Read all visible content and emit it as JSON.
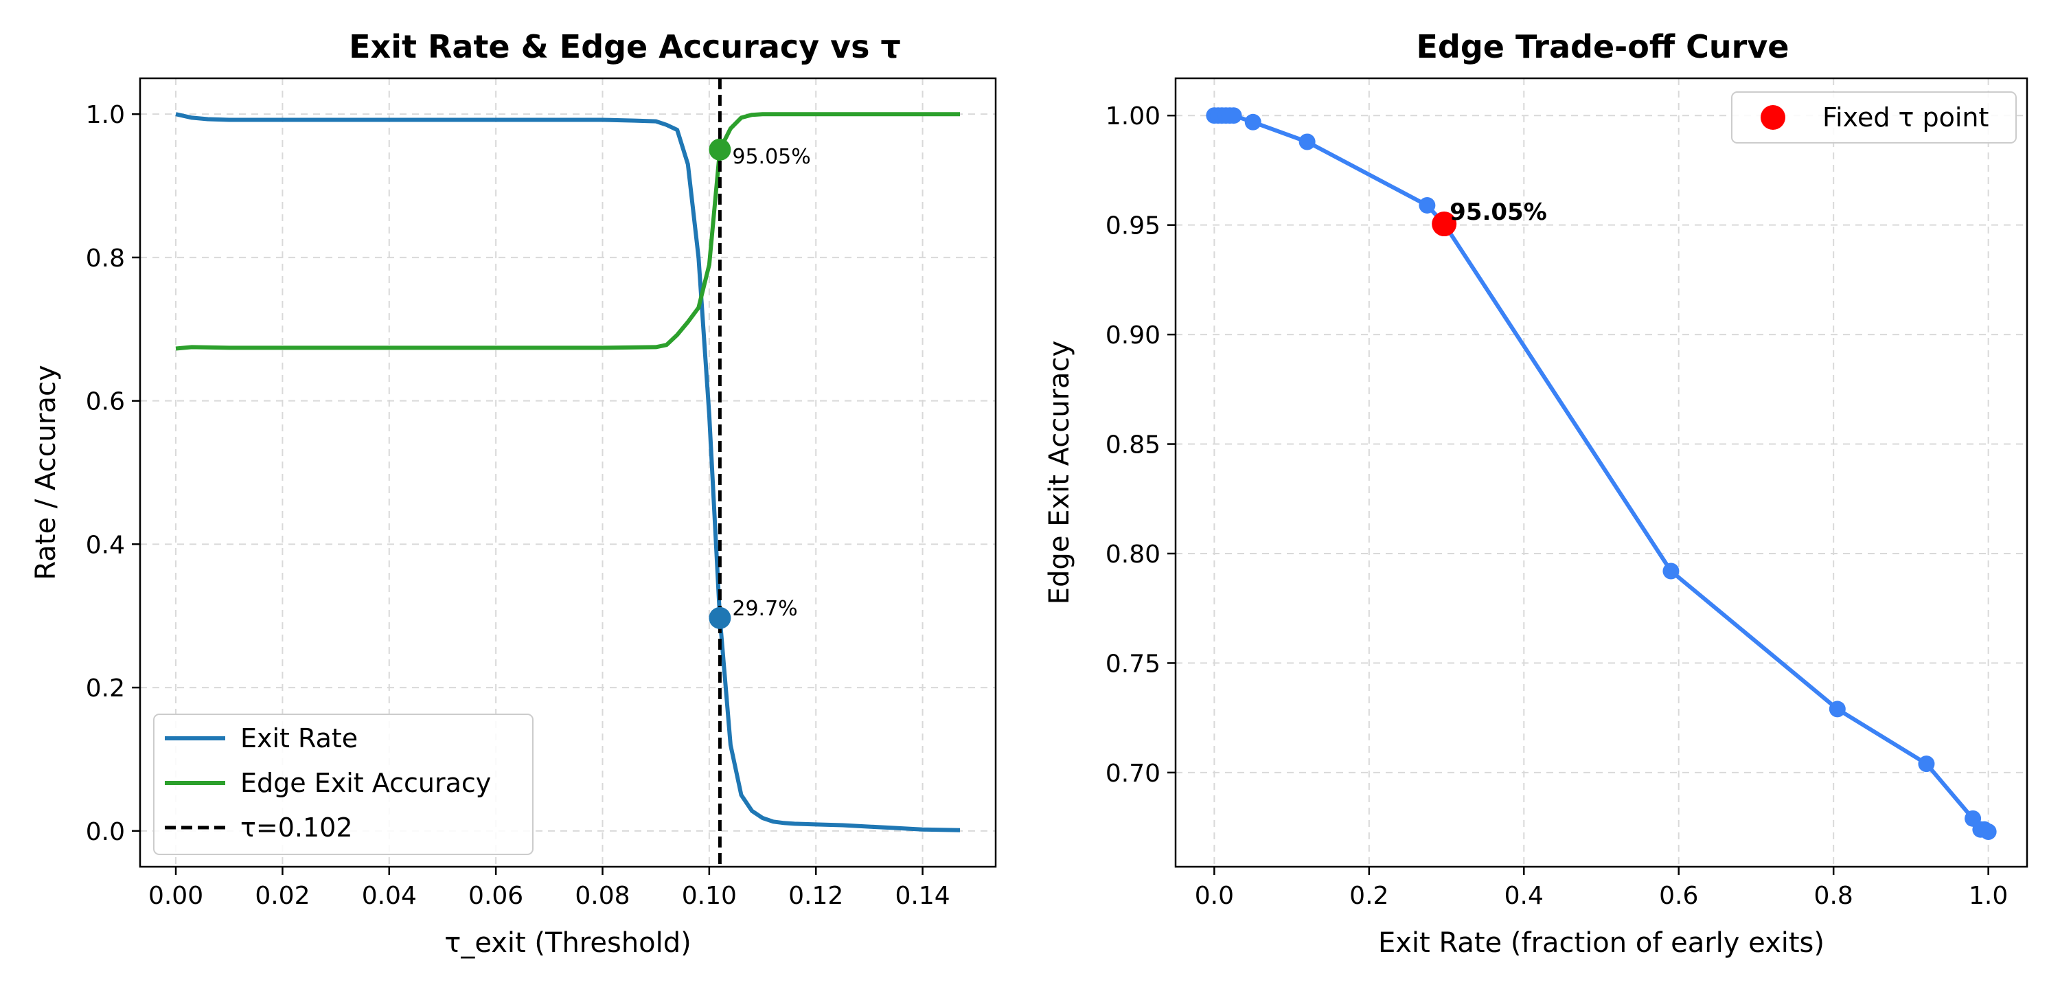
{
  "colors": {
    "exit_rate": "#1f77b4",
    "edge_acc": "#2ca02c",
    "tau_line": "#000000",
    "tradeoff": "#3b82f6",
    "fixed_point": "#ff0000"
  },
  "chart_data": [
    {
      "type": "line",
      "title": "Exit Rate & Edge Accuracy vs τ",
      "xlabel": "τ_exit (Threshold)",
      "ylabel": "Rate / Accuracy",
      "xlim": [
        -0.0067,
        0.1537
      ],
      "ylim": [
        -0.05,
        1.05
      ],
      "xticks": [
        0.0,
        0.02,
        0.04,
        0.06,
        0.08,
        0.1,
        0.12,
        0.14
      ],
      "xtick_labels": [
        "0.00",
        "0.02",
        "0.04",
        "0.06",
        "0.08",
        "0.10",
        "0.12",
        "0.14"
      ],
      "yticks": [
        0.0,
        0.2,
        0.4,
        0.6,
        0.8,
        1.0
      ],
      "ytick_labels": [
        "0.0",
        "0.2",
        "0.4",
        "0.6",
        "0.8",
        "1.0"
      ],
      "grid": true,
      "legend_position": "lower-left",
      "series": [
        {
          "name": "Exit Rate",
          "x": [
            0.0,
            0.003,
            0.006,
            0.01,
            0.02,
            0.04,
            0.06,
            0.08,
            0.086,
            0.09,
            0.092,
            0.094,
            0.096,
            0.098,
            0.1,
            0.102,
            0.104,
            0.106,
            0.108,
            0.11,
            0.112,
            0.114,
            0.116,
            0.12,
            0.125,
            0.13,
            0.135,
            0.14,
            0.147
          ],
          "values": [
            1.0,
            0.995,
            0.993,
            0.992,
            0.992,
            0.992,
            0.992,
            0.992,
            0.991,
            0.99,
            0.985,
            0.978,
            0.93,
            0.8,
            0.58,
            0.297,
            0.12,
            0.05,
            0.028,
            0.018,
            0.013,
            0.011,
            0.01,
            0.009,
            0.008,
            0.006,
            0.004,
            0.002,
            0.001
          ]
        },
        {
          "name": "Edge Exit Accuracy",
          "x": [
            0.0,
            0.003,
            0.01,
            0.02,
            0.04,
            0.06,
            0.08,
            0.09,
            0.092,
            0.094,
            0.096,
            0.098,
            0.1,
            0.102,
            0.104,
            0.106,
            0.108,
            0.11,
            0.12,
            0.13,
            0.14,
            0.147
          ],
          "values": [
            0.673,
            0.675,
            0.674,
            0.674,
            0.674,
            0.674,
            0.674,
            0.675,
            0.678,
            0.692,
            0.71,
            0.73,
            0.79,
            0.9505,
            0.98,
            0.995,
            0.999,
            1.0,
            1.0,
            1.0,
            1.0,
            1.0
          ]
        },
        {
          "name": "τ=0.102",
          "vline": 0.102
        }
      ],
      "markers": [
        {
          "x": 0.102,
          "y": 0.9505,
          "label": "95.05%",
          "series": "Edge Exit Accuracy"
        },
        {
          "x": 0.102,
          "y": 0.297,
          "label": "29.7%",
          "series": "Exit Rate"
        }
      ]
    },
    {
      "type": "line",
      "title": "Edge Trade-off Curve",
      "xlabel": "Exit Rate (fraction of early exits)",
      "ylabel": "Edge Exit Accuracy",
      "xlim": [
        -0.05,
        1.05
      ],
      "ylim": [
        0.657,
        1.017
      ],
      "xticks": [
        0.0,
        0.2,
        0.4,
        0.6,
        0.8,
        1.0
      ],
      "xtick_labels": [
        "0.0",
        "0.2",
        "0.4",
        "0.6",
        "0.8",
        "1.0"
      ],
      "yticks": [
        0.7,
        0.75,
        0.8,
        0.85,
        0.9,
        0.95,
        1.0
      ],
      "ytick_labels": [
        "0.70",
        "0.75",
        "0.80",
        "0.85",
        "0.90",
        "0.95",
        "1.00"
      ],
      "grid": true,
      "legend_position": "upper-right",
      "series": [
        {
          "x": [
            0.0,
            0.005,
            0.01,
            0.015,
            0.02,
            0.025,
            0.05,
            0.12,
            0.275,
            0.297,
            0.59,
            0.805,
            0.92,
            0.98,
            0.99,
            0.995,
            1.0
          ],
          "values": [
            1.0,
            1.0,
            1.0,
            1.0,
            1.0,
            1.0,
            0.997,
            0.988,
            0.959,
            0.9505,
            0.792,
            0.729,
            0.704,
            0.679,
            0.674,
            0.674,
            0.673
          ]
        }
      ],
      "fixed_point": {
        "x": 0.297,
        "y": 0.9505,
        "label": "95.05%",
        "legend": "Fixed τ point"
      }
    }
  ]
}
